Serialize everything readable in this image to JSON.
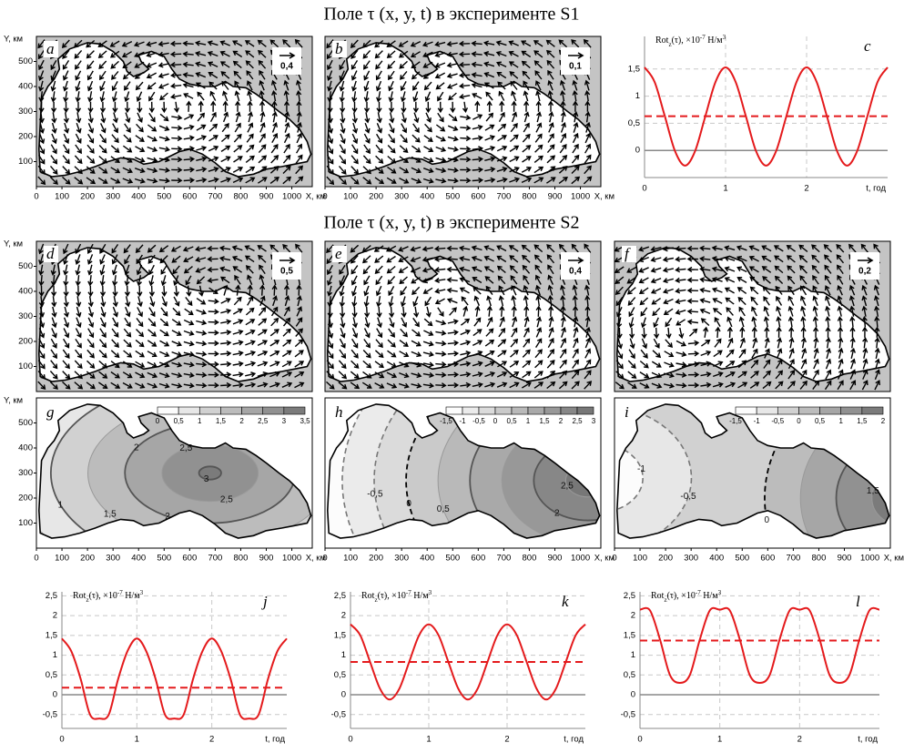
{
  "titles": [
    "Поле τ (x, y, t) в эксперименте S1",
    "Поле τ (x, y, t) в эксперименте S2"
  ],
  "chart_data": [
    {
      "type": "vector-map",
      "label": "a",
      "scale": {
        "value": 0.4,
        "label": "0,4"
      },
      "xlabel": "X, км",
      "ylabel": "Y, км",
      "xlim": [
        0,
        1080
      ],
      "ylim": [
        0,
        600
      ],
      "xticks": [
        0,
        100,
        200,
        300,
        400,
        500,
        600,
        700,
        800,
        900,
        1000
      ],
      "yticks": [
        100,
        200,
        300,
        400,
        500
      ]
    },
    {
      "type": "vector-map",
      "label": "b",
      "scale": {
        "value": 0.1,
        "label": "0,1"
      },
      "xlabel": "X, км",
      "xlim": [
        0,
        1080
      ],
      "ylim": [
        0,
        600
      ],
      "xticks": [
        0,
        100,
        200,
        300,
        400,
        500,
        600,
        700,
        800,
        900,
        1000
      ]
    },
    {
      "type": "line",
      "label": "c",
      "ylabel": [
        "Rot",
        "z",
        "(τ), ×10",
        "-7",
        " Н/м",
        "3"
      ],
      "xlabel": "t, год",
      "x": [
        0,
        0.125,
        0.25,
        0.375,
        0.5,
        0.625,
        0.75,
        0.875,
        1,
        1.125,
        1.25,
        1.375,
        1.5,
        1.625,
        1.75,
        1.875,
        2,
        2.125,
        2.25,
        2.375,
        2.5,
        2.625,
        2.75,
        2.875,
        3
      ],
      "xlim": [
        0,
        3
      ],
      "xticks": [
        0,
        1,
        2
      ],
      "ylim": [
        -0.5,
        2.1
      ],
      "yticks": [
        0,
        {
          "value": 0.5,
          "label": "0,5"
        },
        1,
        {
          "value": 1.5,
          "label": "1,5"
        }
      ],
      "series": [
        {
          "color": "#e41a1c",
          "values": [
            1.53,
            1.26,
            0.63,
            -0.01,
            -0.28,
            -0.01,
            0.63,
            1.26,
            1.53,
            1.26,
            0.63,
            -0.01,
            -0.28,
            -0.01,
            0.63,
            1.26,
            1.53,
            1.26,
            0.63,
            -0.01,
            -0.28,
            -0.01,
            0.63,
            1.26,
            1.53
          ]
        }
      ],
      "reference_line": {
        "value": 0.63,
        "color": "#e41a1c",
        "style": "dashed"
      },
      "grid": true
    },
    {
      "type": "vector-map",
      "label": "d",
      "scale": {
        "value": 0.5,
        "label": "0,5"
      },
      "ylabel": "Y, км",
      "xlim": [
        0,
        1080
      ],
      "ylim": [
        0,
        600
      ],
      "yticks": [
        100,
        200,
        300,
        400,
        500
      ]
    },
    {
      "type": "vector-map",
      "label": "e",
      "scale": {
        "value": 0.4,
        "label": "0,4"
      },
      "xlim": [
        0,
        1080
      ],
      "ylim": [
        0,
        600
      ]
    },
    {
      "type": "vector-map",
      "label": "f",
      "scale": {
        "value": 0.2,
        "label": "0,2"
      },
      "xlim": [
        0,
        1080
      ],
      "ylim": [
        0,
        600
      ]
    },
    {
      "type": "contour-map",
      "label": "g",
      "xlabel": "X, км",
      "ylabel": "Y, км",
      "xlim": [
        0,
        1080
      ],
      "ylim": [
        0,
        600
      ],
      "xticks": [
        0,
        100,
        200,
        300,
        400,
        500,
        600,
        700,
        800,
        900,
        1000
      ],
      "yticks": [
        100,
        200,
        300,
        400,
        500
      ],
      "colorbar_ticks": [
        0,
        {
          "value": 0.5,
          "label": "0,5"
        },
        1,
        {
          "value": 1.5,
          "label": "1,5"
        },
        2,
        {
          "value": 2.5,
          "label": "2,5"
        },
        3,
        {
          "value": 3.5,
          "label": "3,5"
        }
      ],
      "contour_labels": [
        1,
        {
          "value": 1.5,
          "label": "1,5"
        },
        2,
        2,
        {
          "value": 2.5,
          "label": "2,5"
        },
        {
          "value": 2.5,
          "label": "2,5"
        },
        3
      ]
    },
    {
      "type": "contour-map",
      "label": "h",
      "xlabel": "X, км",
      "xlim": [
        0,
        1080
      ],
      "ylim": [
        0,
        600
      ],
      "xticks": [
        0,
        100,
        200,
        300,
        400,
        500,
        600,
        700,
        800,
        900,
        1000
      ],
      "colorbar_ticks": [
        {
          "value": -1.5,
          "label": "-1,5"
        },
        -1,
        {
          "value": -0.5,
          "label": "-0,5"
        },
        0,
        {
          "value": 0.5,
          "label": "0,5"
        },
        1,
        {
          "value": 1.5,
          "label": "1,5"
        },
        2,
        {
          "value": 2.5,
          "label": "2,5"
        },
        3
      ],
      "contour_labels": [
        {
          "value": -0.5,
          "label": "-0,5"
        },
        0,
        {
          "value": 0.5,
          "label": "0,5"
        },
        2,
        {
          "value": 2.5,
          "label": "2,5"
        }
      ]
    },
    {
      "type": "contour-map",
      "label": "i",
      "xlabel": "X, км",
      "xlim": [
        0,
        1080
      ],
      "ylim": [
        0,
        600
      ],
      "xticks": [
        0,
        100,
        200,
        300,
        400,
        500,
        600,
        700,
        800,
        900,
        1000
      ],
      "colorbar_ticks": [
        {
          "value": -1.5,
          "label": "-1,5"
        },
        -1,
        {
          "value": -0.5,
          "label": "-0,5"
        },
        0,
        {
          "value": 0.5,
          "label": "0,5"
        },
        1,
        {
          "value": 1.5,
          "label": "1,5"
        },
        2
      ],
      "contour_labels": [
        -1,
        {
          "value": -0.5,
          "label": "-0,5"
        },
        0,
        {
          "value": 1.5,
          "label": "1,5"
        }
      ]
    },
    {
      "type": "line",
      "label": "j",
      "ylabel": [
        "Rot",
        "z",
        "(τ), ×10",
        "-7",
        " Н/м",
        "3"
      ],
      "xlabel": "t, год",
      "x": [
        0,
        0.125,
        0.25,
        0.375,
        0.5,
        0.625,
        0.75,
        0.875,
        1,
        1.125,
        1.25,
        1.375,
        1.5,
        1.625,
        1.75,
        1.875,
        2,
        2.125,
        2.25,
        2.375,
        2.5,
        2.625,
        2.75,
        2.875,
        3
      ],
      "xlim": [
        0,
        3
      ],
      "xticks": [
        0,
        1,
        2
      ],
      "ylim": [
        -0.85,
        2.6
      ],
      "yticks": [
        {
          "value": -0.5,
          "label": "-0,5"
        },
        0,
        {
          "value": 0.5,
          "label": "0,5"
        },
        1,
        {
          "value": 1.5,
          "label": "1,5"
        },
        2,
        {
          "value": 2.5,
          "label": "2,5"
        }
      ],
      "series": [
        {
          "color": "#e41a1c",
          "values": [
            1.42,
            1.1,
            0.4,
            -0.5,
            -0.6,
            -0.5,
            0.4,
            1.1,
            1.42,
            1.1,
            0.4,
            -0.5,
            -0.6,
            -0.5,
            0.4,
            1.1,
            1.42,
            1.1,
            0.4,
            -0.5,
            -0.6,
            -0.5,
            0.4,
            1.1,
            1.42
          ]
        }
      ],
      "reference_line": {
        "value": 0.18,
        "color": "#e41a1c",
        "style": "dashed"
      },
      "grid": true
    },
    {
      "type": "line",
      "label": "k",
      "ylabel": [
        "Rot",
        "z",
        "(τ), ×10",
        "-7",
        " Н/м",
        "3"
      ],
      "xlabel": "t, год",
      "x": [
        0,
        0.125,
        0.25,
        0.375,
        0.5,
        0.625,
        0.75,
        0.875,
        1,
        1.125,
        1.25,
        1.375,
        1.5,
        1.625,
        1.75,
        1.875,
        2,
        2.125,
        2.25,
        2.375,
        2.5,
        2.625,
        2.75,
        2.875,
        3
      ],
      "xlim": [
        0,
        3
      ],
      "xticks": [
        0,
        1,
        2
      ],
      "ylim": [
        -0.85,
        2.6
      ],
      "yticks": [
        {
          "value": -0.5,
          "label": "-0,5"
        },
        0,
        {
          "value": 0.5,
          "label": "0,5"
        },
        1,
        {
          "value": 1.5,
          "label": "1,5"
        },
        2,
        {
          "value": 2.5,
          "label": "2,5"
        }
      ],
      "series": [
        {
          "color": "#e41a1c",
          "values": [
            1.78,
            1.5,
            0.83,
            0.16,
            -0.12,
            0.16,
            0.83,
            1.5,
            1.78,
            1.5,
            0.83,
            0.16,
            -0.12,
            0.16,
            0.83,
            1.5,
            1.78,
            1.5,
            0.83,
            0.16,
            -0.12,
            0.16,
            0.83,
            1.5,
            1.78
          ]
        }
      ],
      "reference_line": {
        "value": 0.83,
        "color": "#e41a1c",
        "style": "dashed"
      },
      "grid": true
    },
    {
      "type": "line",
      "label": "l",
      "ylabel": [
        "Rot",
        "z",
        "(τ), ×10",
        "-7",
        " Н/м",
        "3"
      ],
      "xlabel": "t, год",
      "x": [
        0,
        0.125,
        0.25,
        0.375,
        0.5,
        0.625,
        0.75,
        0.875,
        1,
        1.125,
        1.25,
        1.375,
        1.5,
        1.625,
        1.75,
        1.875,
        2,
        2.125,
        2.25,
        2.375,
        2.5,
        2.625,
        2.75,
        2.875,
        3
      ],
      "xlim": [
        0,
        3
      ],
      "xticks": [
        0,
        1,
        2
      ],
      "ylim": [
        -0.85,
        2.6
      ],
      "yticks": [
        {
          "value": -0.5,
          "label": "-0,5"
        },
        0,
        {
          "value": 0.5,
          "label": "0,5"
        },
        1,
        {
          "value": 1.5,
          "label": "1,5"
        },
        2,
        {
          "value": 2.5,
          "label": "2,5"
        }
      ],
      "series": [
        {
          "color": "#e41a1c",
          "values": [
            2.15,
            2.13,
            1.4,
            0.5,
            0.3,
            0.5,
            1.4,
            2.13,
            2.15,
            2.13,
            1.4,
            0.5,
            0.3,
            0.5,
            1.4,
            2.13,
            2.15,
            2.13,
            1.4,
            0.5,
            0.3,
            0.5,
            1.4,
            2.13,
            2.15
          ]
        }
      ],
      "reference_line": {
        "value": 1.37,
        "color": "#e41a1c",
        "style": "dashed"
      },
      "grid": true
    }
  ]
}
